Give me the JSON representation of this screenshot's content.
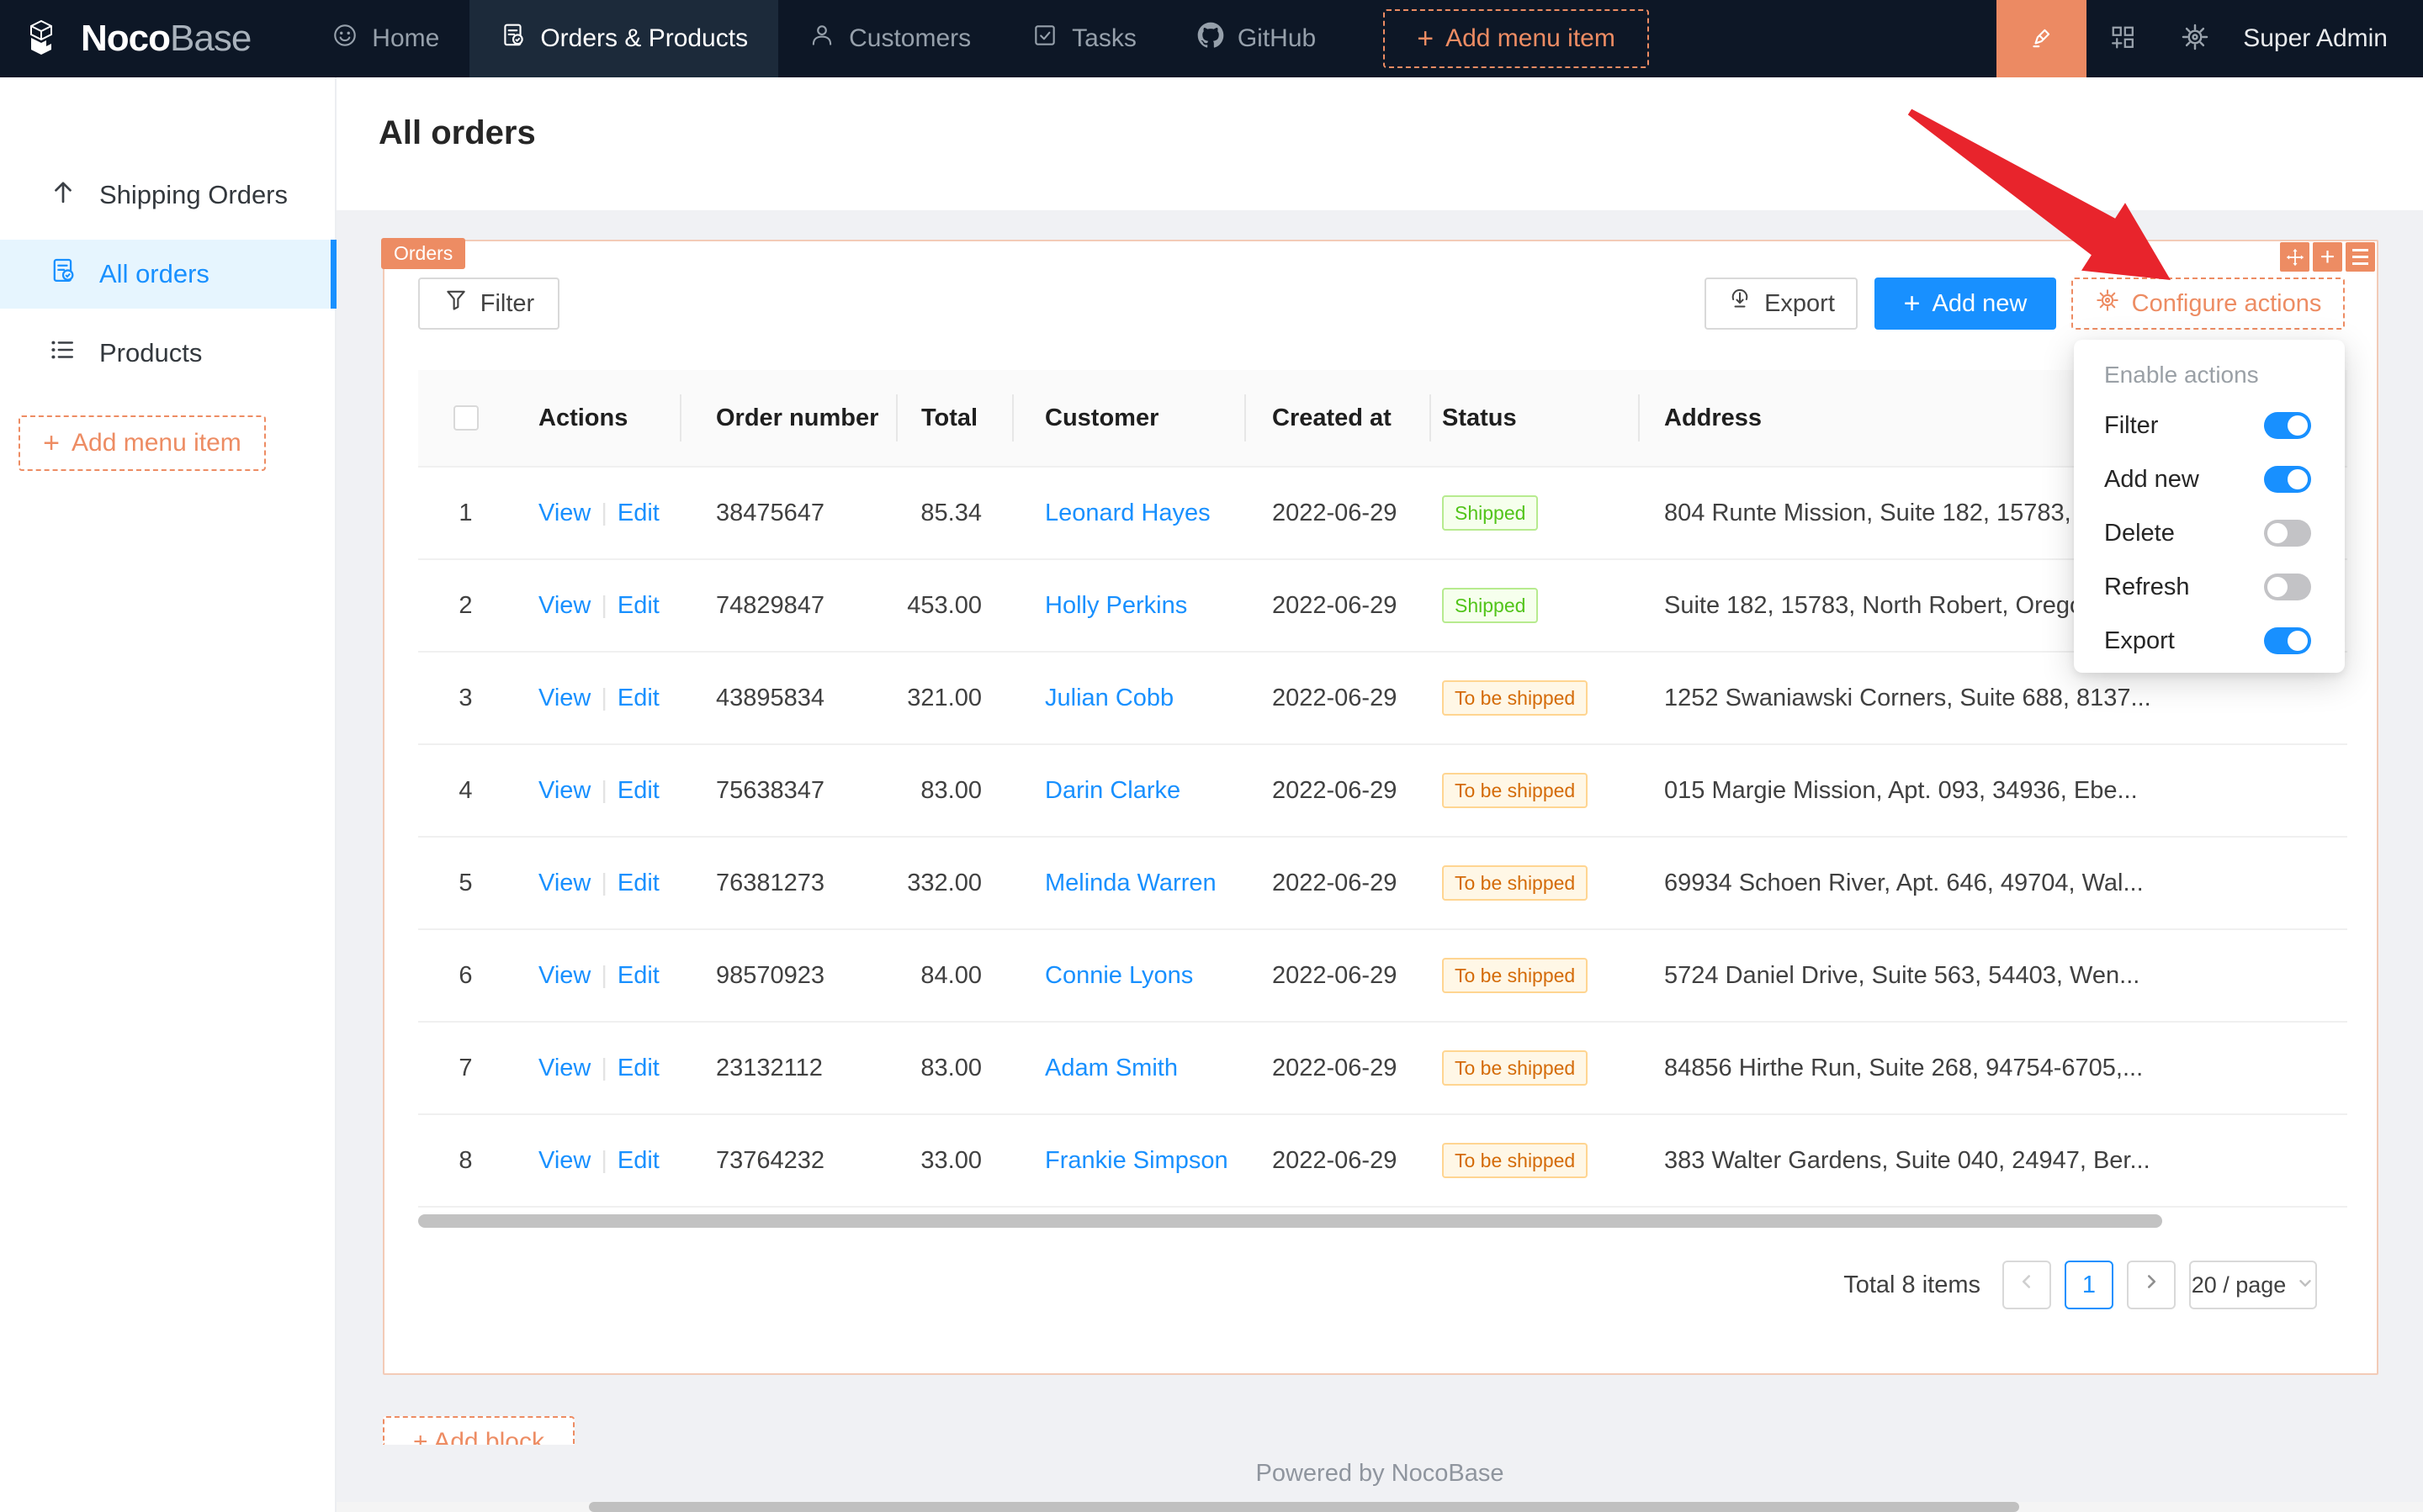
{
  "colors": {
    "navbar_bg": "#0d1726",
    "accent_orange": "#ed8c63",
    "primary_blue": "#1890ff",
    "success_text": "#52c41a",
    "success_bg": "#f6ffed",
    "success_border": "#b7eb8f",
    "warning_text": "#d46b08",
    "warning_bg": "#fff7e6",
    "warning_border": "#ffd591",
    "annotation_arrow_red": "#e8242c"
  },
  "navbar": {
    "brand": {
      "bold": "Noco",
      "light": "Base"
    },
    "items": [
      {
        "label": "Home"
      },
      {
        "label": "Orders & Products",
        "active": true
      },
      {
        "label": "Customers"
      },
      {
        "label": "Tasks"
      },
      {
        "label": "GitHub"
      }
    ],
    "add_menu_item": "Add menu item",
    "user": "Super Admin"
  },
  "sidebar": {
    "items": [
      {
        "label": "Shipping Orders"
      },
      {
        "label": "All orders",
        "active": true
      },
      {
        "label": "Products"
      }
    ],
    "add_menu_item": "Add menu item"
  },
  "page": {
    "title": "All orders"
  },
  "block": {
    "tag": "Orders",
    "toolbar": {
      "filter": "Filter",
      "export": "Export",
      "add_new": "Add new",
      "configure_actions": "Configure actions"
    },
    "table": {
      "columns": [
        "",
        "Actions",
        "Order number",
        "Total",
        "Customer",
        "Created at",
        "Status",
        "Address"
      ],
      "action_labels": [
        "View",
        "Edit"
      ],
      "rows": [
        {
          "index": "1",
          "order_number": "38475647",
          "total": "85.34",
          "customer": "Leonard Hayes",
          "created_at": "2022-06-29",
          "status": "Shipped",
          "status_type": "success",
          "address": "804 Runte Mission, Suite 182, 15783, N"
        },
        {
          "index": "2",
          "order_number": "74829847",
          "total": "453.00",
          "customer": "Holly Perkins",
          "created_at": "2022-06-29",
          "status": "Shipped",
          "status_type": "success",
          "address": "Suite 182, 15783, North Robert, Oregon"
        },
        {
          "index": "3",
          "order_number": "43895834",
          "total": "321.00",
          "customer": "Julian Cobb",
          "created_at": "2022-06-29",
          "status": "To be shipped",
          "status_type": "warning",
          "address": "1252 Swaniawski Corners, Suite 688, 8137..."
        },
        {
          "index": "4",
          "order_number": "75638347",
          "total": "83.00",
          "customer": "Darin Clarke",
          "created_at": "2022-06-29",
          "status": "To be shipped",
          "status_type": "warning",
          "address": "015 Margie Mission, Apt. 093, 34936, Ebe..."
        },
        {
          "index": "5",
          "order_number": "76381273",
          "total": "332.00",
          "customer": "Melinda Warren",
          "created_at": "2022-06-29",
          "status": "To be shipped",
          "status_type": "warning",
          "address": "69934 Schoen River, Apt. 646, 49704, Wal..."
        },
        {
          "index": "6",
          "order_number": "98570923",
          "total": "84.00",
          "customer": "Connie Lyons",
          "created_at": "2022-06-29",
          "status": "To be shipped",
          "status_type": "warning",
          "address": "5724 Daniel Drive, Suite 563, 54403, Wen..."
        },
        {
          "index": "7",
          "order_number": "23132112",
          "total": "83.00",
          "customer": "Adam Smith",
          "created_at": "2022-06-29",
          "status": "To be shipped",
          "status_type": "warning",
          "address": "84856 Hirthe Run, Suite 268, 94754-6705,..."
        },
        {
          "index": "8",
          "order_number": "73764232",
          "total": "33.00",
          "customer": "Frankie Simpson",
          "created_at": "2022-06-29",
          "status": "To be shipped",
          "status_type": "warning",
          "address": "383 Walter Gardens, Suite 040, 24947, Ber..."
        }
      ]
    },
    "pagination": {
      "total": "Total 8 items",
      "page": "1",
      "page_size": "20 / page"
    }
  },
  "dropdown": {
    "title": "Enable actions",
    "items": [
      {
        "label": "Filter",
        "enabled": true
      },
      {
        "label": "Add new",
        "enabled": true
      },
      {
        "label": "Delete",
        "enabled": false
      },
      {
        "label": "Refresh",
        "enabled": false
      },
      {
        "label": "Export",
        "enabled": true
      }
    ]
  },
  "add_block": "+ Add block",
  "footer": "Powered by NocoBase"
}
